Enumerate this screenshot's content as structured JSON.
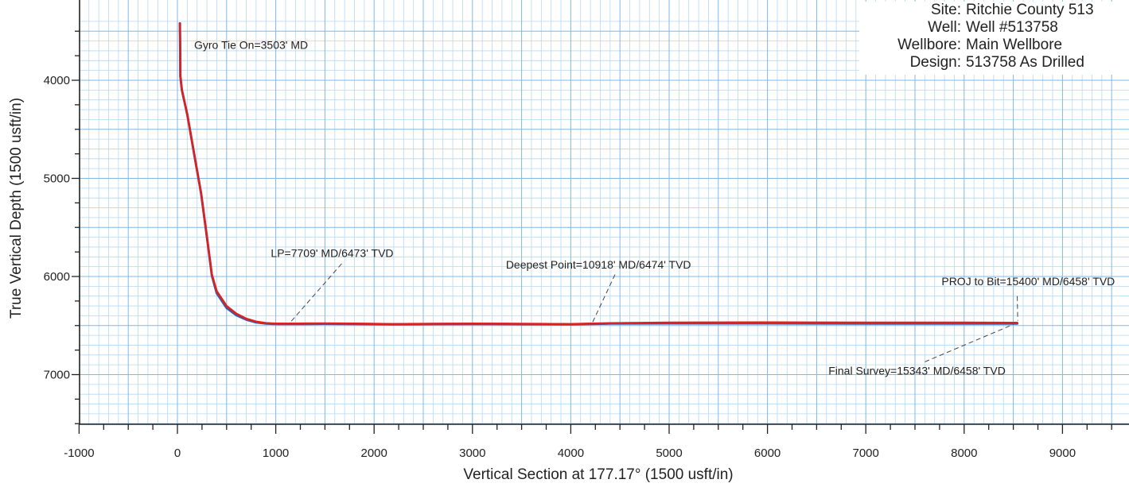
{
  "chart_data": {
    "type": "line",
    "xlabel": "Vertical Section at 177.17° (1500 usft/in)",
    "ylabel": "True Vertical Depth (1500 usft/in)",
    "xlim": [
      -1000,
      9500
    ],
    "ylim": [
      7500,
      3400
    ],
    "y_inverted": true,
    "grid": true,
    "x_ticks": [
      -1000,
      0,
      1000,
      2000,
      3000,
      4000,
      5000,
      6000,
      7000,
      8000,
      9000
    ],
    "y_ticks": [
      4000,
      5000,
      6000,
      7000
    ],
    "x_tick_labels": [
      "-1000",
      "0",
      "1000",
      "2000",
      "3000",
      "4000",
      "5000",
      "6000",
      "7000",
      "8000",
      "9000"
    ],
    "y_tick_labels": [
      "4000",
      "5000",
      "6000",
      "7000"
    ],
    "series": [
      {
        "color": "#e0201c",
        "x": [
          25,
          28,
          30,
          45,
          100,
          170,
          240,
          300,
          350,
          400,
          500,
          600,
          700,
          800,
          900,
          1000,
          1100,
          1200,
          1500,
          1800,
          2200,
          2600,
          3000,
          3500,
          4000,
          4200,
          4400,
          5000,
          6000,
          7000,
          8000,
          8540
        ],
        "y": [
          3420,
          3700,
          3960,
          4100,
          4350,
          4750,
          5150,
          5600,
          5980,
          6150,
          6300,
          6380,
          6430,
          6460,
          6475,
          6480,
          6480,
          6480,
          6478,
          6480,
          6485,
          6482,
          6480,
          6482,
          6485,
          6480,
          6476,
          6470,
          6468,
          6470,
          6470,
          6472
        ]
      },
      {
        "color": "#2f5fb3",
        "x": [
          25,
          28,
          30,
          45,
          100,
          170,
          240,
          300,
          350,
          400,
          500,
          600,
          700,
          800,
          900,
          1000,
          1100,
          1200,
          1500,
          1800,
          2200,
          2600,
          3000,
          3500,
          4000,
          4200,
          4400,
          5000,
          6000,
          7000,
          8000,
          8540
        ],
        "y": [
          3420,
          3700,
          3960,
          4100,
          4350,
          4750,
          5150,
          5600,
          5990,
          6170,
          6320,
          6395,
          6440,
          6468,
          6480,
          6484,
          6484,
          6484,
          6482,
          6484,
          6488,
          6485,
          6484,
          6486,
          6488,
          6484,
          6480,
          6478,
          6478,
          6480,
          6480,
          6480
        ]
      }
    ],
    "annotations": [
      {
        "text": "Gyro Tie On=3503' MD",
        "x": 170,
        "y": 3680,
        "anchor": "start"
      },
      {
        "text": "LP=7709' MD/6473' TVD",
        "x": 950,
        "y": 5800,
        "anchor": "start",
        "leader": [
          [
            1670,
            5870
          ],
          [
            1150,
            6465
          ]
        ]
      },
      {
        "text": "Deepest Point=10918' MD/6474' TVD",
        "x": 3340,
        "y": 5920,
        "anchor": "start",
        "leader": [
          [
            4450,
            5980
          ],
          [
            4220,
            6470
          ]
        ]
      },
      {
        "text": "PROJ to Bit=15400' MD/6458' TVD",
        "x": 7770,
        "y": 6090,
        "anchor": "start",
        "leader": [
          [
            8540,
            6200
          ],
          [
            8545,
            6450
          ]
        ]
      },
      {
        "text": "Final Survey=15343' MD/6458' TVD",
        "x": 6620,
        "y": 7000,
        "anchor": "start",
        "leader": [
          [
            7600,
            6870
          ],
          [
            8520,
            6480
          ]
        ]
      }
    ]
  },
  "well_info": [
    {
      "key": "Site:",
      "value": "Ritchie County 513"
    },
    {
      "key": "Well:",
      "value": "Well #513758"
    },
    {
      "key": "Wellbore:",
      "value": "Main Wellbore"
    },
    {
      "key": "Design:",
      "value": "513758 As Drilled"
    }
  ]
}
